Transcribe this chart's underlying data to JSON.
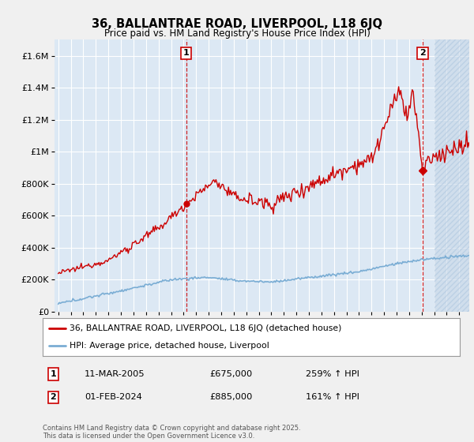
{
  "title": "36, BALLANTRAE ROAD, LIVERPOOL, L18 6JQ",
  "subtitle": "Price paid vs. HM Land Registry's House Price Index (HPI)",
  "red_label": "36, BALLANTRAE ROAD, LIVERPOOL, L18 6JQ (detached house)",
  "blue_label": "HPI: Average price, detached house, Liverpool",
  "point1_date": "11-MAR-2005",
  "point1_price": 675000,
  "point1_hpi": "259% ↑ HPI",
  "point2_date": "01-FEB-2024",
  "point2_price": 885000,
  "point2_hpi": "161% ↑ HPI",
  "footer": "Contains HM Land Registry data © Crown copyright and database right 2025.\nThis data is licensed under the Open Government Licence v3.0.",
  "ylim": [
    0,
    1700000
  ],
  "yticks": [
    0,
    200000,
    400000,
    600000,
    800000,
    1000000,
    1200000,
    1400000,
    1600000
  ],
  "xlim_start": 1994.7,
  "xlim_end": 2027.8,
  "red_color": "#cc0000",
  "blue_color": "#7aadd4",
  "bg_color": "#f0f0f0",
  "plot_bg": "#dce8f4",
  "grid_color": "#ffffff",
  "annotation_line_color": "#cc0000",
  "hatch_color": "#c8d8e8"
}
